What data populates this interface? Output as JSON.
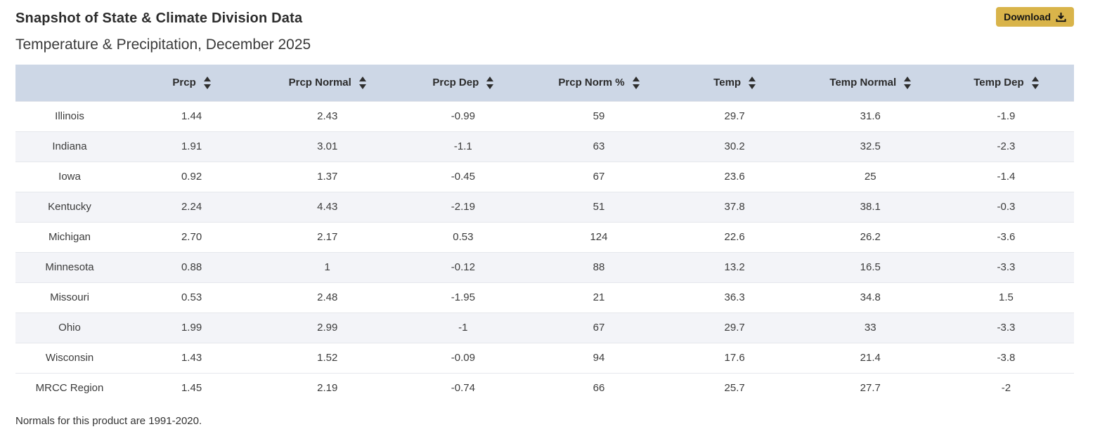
{
  "page": {
    "title": "Snapshot of State & Climate Division Data",
    "subtitle": "Temperature & Precipitation, December 2025",
    "footnote": "Normals for this product are 1991-2020."
  },
  "toolbar": {
    "download_label": "Download",
    "download_icon": "download-tray-arrow-icon"
  },
  "colors": {
    "accent_gold": "#d9b44a",
    "header_bg": "#cdd7e6",
    "stripe_bg": "#f3f4f8",
    "row_border": "#e5e7ec",
    "text": "#3c3c3c"
  },
  "table": {
    "sort_icon": "up-down-sort-arrows",
    "columns": [
      "Prcp",
      "Prcp Normal",
      "Prcp Dep",
      "Prcp Norm %",
      "Temp",
      "Temp Normal",
      "Temp Dep"
    ],
    "rows": [
      {
        "name": "Illinois",
        "values": [
          "1.44",
          "2.43",
          "-0.99",
          "59",
          "29.7",
          "31.6",
          "-1.9"
        ]
      },
      {
        "name": "Indiana",
        "values": [
          "1.91",
          "3.01",
          "-1.1",
          "63",
          "30.2",
          "32.5",
          "-2.3"
        ]
      },
      {
        "name": "Iowa",
        "values": [
          "0.92",
          "1.37",
          "-0.45",
          "67",
          "23.6",
          "25",
          "-1.4"
        ]
      },
      {
        "name": "Kentucky",
        "values": [
          "2.24",
          "4.43",
          "-2.19",
          "51",
          "37.8",
          "38.1",
          "-0.3"
        ]
      },
      {
        "name": "Michigan",
        "values": [
          "2.70",
          "2.17",
          "0.53",
          "124",
          "22.6",
          "26.2",
          "-3.6"
        ]
      },
      {
        "name": "Minnesota",
        "values": [
          "0.88",
          "1",
          "-0.12",
          "88",
          "13.2",
          "16.5",
          "-3.3"
        ]
      },
      {
        "name": "Missouri",
        "values": [
          "0.53",
          "2.48",
          "-1.95",
          "21",
          "36.3",
          "34.8",
          "1.5"
        ]
      },
      {
        "name": "Ohio",
        "values": [
          "1.99",
          "2.99",
          "-1",
          "67",
          "29.7",
          "33",
          "-3.3"
        ]
      },
      {
        "name": "Wisconsin",
        "values": [
          "1.43",
          "1.52",
          "-0.09",
          "94",
          "17.6",
          "21.4",
          "-3.8"
        ]
      }
    ],
    "summary_row": {
      "name": "MRCC Region",
      "values": [
        "1.45",
        "2.19",
        "-0.74",
        "66",
        "25.7",
        "27.7",
        "-2"
      ]
    }
  }
}
